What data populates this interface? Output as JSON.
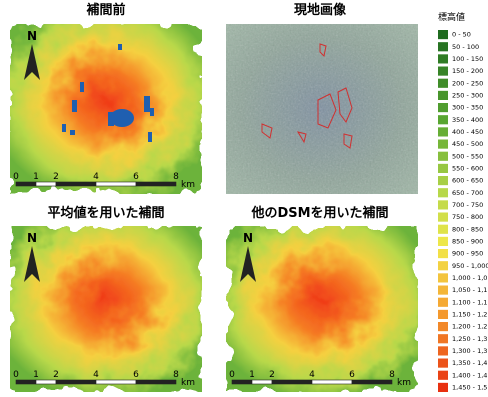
{
  "panels": [
    {
      "title": "補間前"
    },
    {
      "title": "現地画像"
    },
    {
      "title": "平均値を用いた補間"
    },
    {
      "title": "他のDSMを用いた補間"
    }
  ],
  "north": "N",
  "scale_bar": {
    "labels": [
      "0",
      "1",
      "2",
      "4",
      "6",
      "8"
    ],
    "unit": "km"
  },
  "legend": {
    "title": "標高値",
    "items": [
      "0 - 50",
      "50 - 100",
      "100 - 150",
      "150 - 200",
      "200 - 250",
      "250 - 300",
      "300 - 350",
      "350 - 400",
      "400 - 450",
      "450 - 500",
      "500 - 550",
      "550 - 600",
      "600 - 650",
      "650 - 700",
      "700 - 750",
      "750 - 800",
      "800 - 850",
      "850 - 900",
      "900 - 950",
      "950 - 1,000",
      "1,000 - 1,0",
      "1,050 - 1,1",
      "1,100 - 1,1",
      "1,150 - 1,2",
      "1,200 - 1,2",
      "1,250 - 1,3",
      "1,300 - 1,3",
      "1,350 - 1,4",
      "1,400 - 1,4",
      "1,450 - 1,5"
    ]
  }
}
